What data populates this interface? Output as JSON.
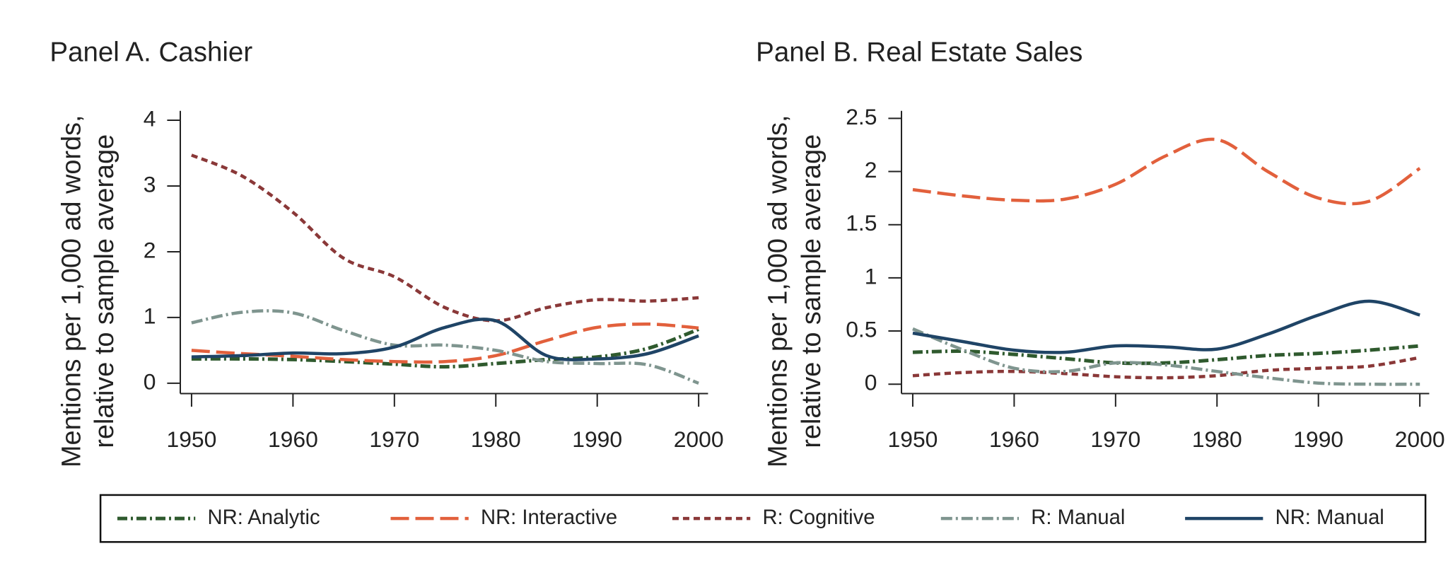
{
  "colors": {
    "nr_analytic": "#2f5a2e",
    "nr_interactive": "#e2603c",
    "r_cognitive": "#8a3838",
    "r_manual": "#7f958f",
    "nr_manual": "#1f4466",
    "axis": "#222222"
  },
  "legend": {
    "placement": "bottom",
    "items": [
      {
        "key": "nr_analytic",
        "label": "NR: Analytic",
        "dash": "dashdot"
      },
      {
        "key": "nr_interactive",
        "label": "NR: Interactive",
        "dash": "longdash"
      },
      {
        "key": "r_cognitive",
        "label": "R: Cognitive",
        "dash": "shortdash"
      },
      {
        "key": "r_manual",
        "label": "R: Manual",
        "dash": "dashdot-light"
      },
      {
        "key": "nr_manual",
        "label": "NR: Manual",
        "dash": "solid"
      }
    ]
  },
  "chart_data": [
    {
      "type": "line",
      "title": "Panel A. Cashier",
      "ylabel": [
        "Mentions per 1,000 ad words,",
        "relative to sample average"
      ],
      "xlabel": "",
      "xlim": [
        1950,
        2000
      ],
      "ylim": [
        0,
        4
      ],
      "xticks": [
        "1950",
        "1960",
        "1970",
        "1980",
        "1990",
        "2000"
      ],
      "yticks": [
        "0",
        "1",
        "2",
        "3",
        "4"
      ],
      "grid": false,
      "x": [
        1950,
        1955,
        1960,
        1965,
        1970,
        1975,
        1980,
        1985,
        1990,
        1995,
        2000
      ],
      "series": [
        {
          "key": "nr_analytic",
          "name": "NR: Analytic",
          "values": [
            0.37,
            0.37,
            0.36,
            0.33,
            0.29,
            0.25,
            0.3,
            0.36,
            0.4,
            0.53,
            0.82
          ]
        },
        {
          "key": "nr_interactive",
          "name": "NR: Interactive",
          "values": [
            0.5,
            0.45,
            0.41,
            0.36,
            0.33,
            0.33,
            0.42,
            0.65,
            0.85,
            0.9,
            0.84
          ]
        },
        {
          "key": "r_cognitive",
          "name": "R: Cognitive",
          "values": [
            3.47,
            3.15,
            2.6,
            1.9,
            1.62,
            1.15,
            0.95,
            1.15,
            1.27,
            1.25,
            1.3
          ]
        },
        {
          "key": "r_manual",
          "name": "R: Manual",
          "values": [
            0.92,
            1.08,
            1.07,
            0.8,
            0.58,
            0.58,
            0.5,
            0.33,
            0.3,
            0.28,
            0.0
          ]
        },
        {
          "key": "nr_manual",
          "name": "NR: Manual",
          "values": [
            0.4,
            0.42,
            0.46,
            0.45,
            0.55,
            0.85,
            0.95,
            0.42,
            0.37,
            0.45,
            0.72
          ]
        }
      ]
    },
    {
      "type": "line",
      "title": "Panel B. Real Estate Sales",
      "ylabel": [
        "Mentions per 1,000 ad words,",
        "relative to sample average"
      ],
      "xlabel": "",
      "xlim": [
        1950,
        2000
      ],
      "ylim": [
        0,
        2.5
      ],
      "xticks": [
        "1950",
        "1960",
        "1970",
        "1980",
        "1990",
        "2000"
      ],
      "yticks": [
        "0",
        "0.5",
        "1",
        "1.5",
        "2",
        "2.5"
      ],
      "grid": false,
      "x": [
        1950,
        1955,
        1960,
        1965,
        1970,
        1975,
        1980,
        1985,
        1990,
        1995,
        2000
      ],
      "series": [
        {
          "key": "nr_analytic",
          "name": "NR: Analytic",
          "values": [
            0.3,
            0.31,
            0.28,
            0.24,
            0.2,
            0.2,
            0.23,
            0.27,
            0.29,
            0.32,
            0.36
          ]
        },
        {
          "key": "nr_interactive",
          "name": "NR: Interactive",
          "values": [
            1.83,
            1.77,
            1.73,
            1.74,
            1.88,
            2.15,
            2.3,
            2.0,
            1.75,
            1.72,
            2.03
          ]
        },
        {
          "key": "r_cognitive",
          "name": "R: Cognitive",
          "values": [
            0.08,
            0.11,
            0.12,
            0.1,
            0.07,
            0.06,
            0.08,
            0.13,
            0.15,
            0.17,
            0.25
          ]
        },
        {
          "key": "r_manual",
          "name": "R: Manual",
          "values": [
            0.52,
            0.32,
            0.15,
            0.12,
            0.2,
            0.18,
            0.12,
            0.06,
            0.01,
            0.0,
            0.0
          ]
        },
        {
          "key": "nr_manual",
          "name": "NR: Manual",
          "values": [
            0.48,
            0.4,
            0.32,
            0.3,
            0.36,
            0.35,
            0.33,
            0.47,
            0.65,
            0.78,
            0.65
          ]
        }
      ]
    }
  ]
}
